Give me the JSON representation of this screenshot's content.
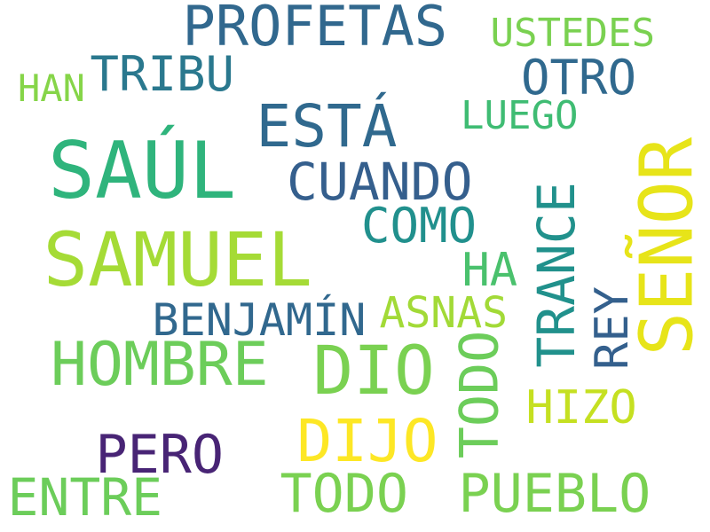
{
  "words": [
    {
      "text": "PROFETAS",
      "color": "#31688e"
    },
    {
      "text": "USTEDES",
      "color": "#7ad151"
    },
    {
      "text": "TRIBU",
      "color": "#2a788e"
    },
    {
      "text": "OTRO",
      "color": "#30698e"
    },
    {
      "text": "HAN",
      "color": "#86d549"
    },
    {
      "text": "ESTÁ",
      "color": "#30698e"
    },
    {
      "text": "LUEGO",
      "color": "#3fbc73"
    },
    {
      "text": "SAÚL",
      "color": "#2fb47c"
    },
    {
      "text": "CUANDO",
      "color": "#355f8d"
    },
    {
      "text": "SEÑOR",
      "color": "#e7e419"
    },
    {
      "text": "TRANCE",
      "color": "#21918c"
    },
    {
      "text": "COMO",
      "color": "#21908d"
    },
    {
      "text": "SAMUEL",
      "color": "#a5db36"
    },
    {
      "text": "HA",
      "color": "#4ac16d"
    },
    {
      "text": "REY",
      "color": "#34608d"
    },
    {
      "text": "BENJAMÍN",
      "color": "#31688e"
    },
    {
      "text": "ASNAS",
      "color": "#a2da37"
    },
    {
      "text": "HOMBRE",
      "color": "#6ccd5a"
    },
    {
      "text": "DIO",
      "color": "#7ad151"
    },
    {
      "text": "TODO",
      "color": "#6ccd5a"
    },
    {
      "text": "HIZO",
      "color": "#c5e021"
    },
    {
      "text": "PERO",
      "color": "#482475"
    },
    {
      "text": "DIJO",
      "color": "#fde725"
    },
    {
      "text": "ENTRE",
      "color": "#6ccd5a"
    },
    {
      "text": "TODO",
      "color": "#7ad151"
    },
    {
      "text": "PUEBLO",
      "color": "#7ad151"
    }
  ]
}
